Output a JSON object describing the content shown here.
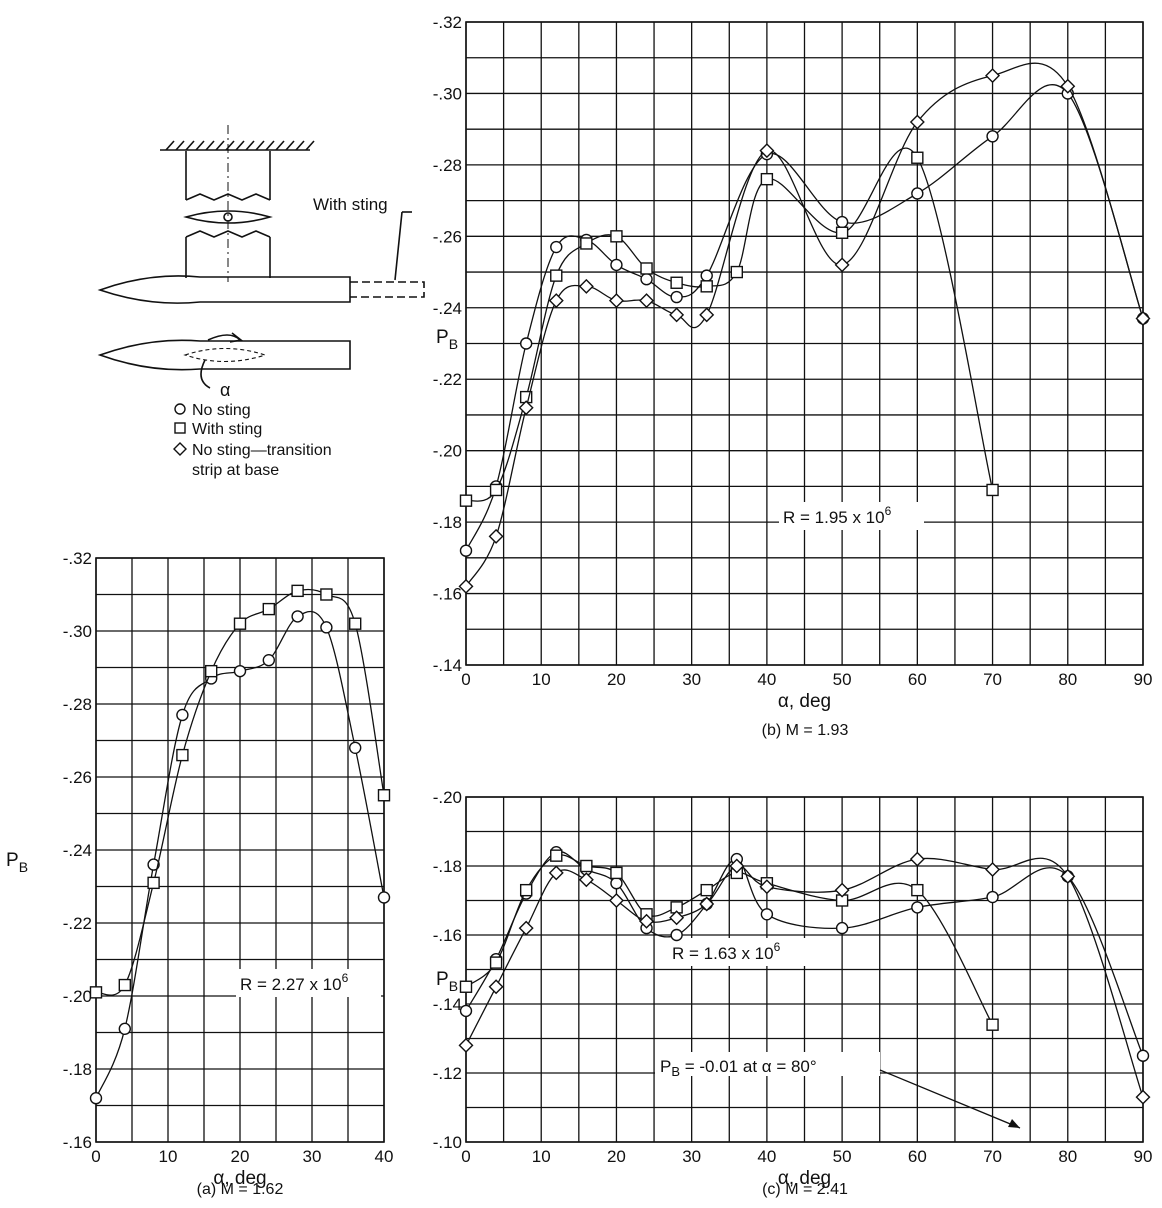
{
  "sketch": {
    "with_sting_label": "With sting",
    "alpha_symbol": "α"
  },
  "legend": [
    {
      "marker": "circle",
      "lines": [
        "No sting"
      ]
    },
    {
      "marker": "square",
      "lines": [
        "With sting"
      ]
    },
    {
      "marker": "diamond",
      "lines": [
        "No sting—transition",
        "strip at base"
      ]
    }
  ],
  "annotation_c": {
    "prefix": "P",
    "sub": "B",
    "suffix": " = -0.01 at α = 80°"
  },
  "chart_data": [
    {
      "id": "a",
      "type": "line",
      "caption": "(a) M = 1.62",
      "xlabel": "α, deg",
      "ylabel": "P",
      "ylabel_sub": "B",
      "xlim": [
        0,
        40
      ],
      "ylim": [
        -0.16,
        -0.32
      ],
      "x_ticks": [
        0,
        10,
        20,
        30,
        40
      ],
      "x_tick_labels": [
        "0",
        "10",
        "20",
        "30",
        "40"
      ],
      "y_ticks": [
        -0.16,
        -0.18,
        -0.2,
        -0.22,
        -0.24,
        -0.26,
        -0.28,
        -0.3,
        -0.32
      ],
      "y_tick_labels": [
        "-.16",
        "-.18",
        "-.20",
        "-.22",
        "-.24",
        "-.26",
        "-.28",
        "-.30",
        "-.32"
      ],
      "reynolds": {
        "text": "R = 2.27 x 10",
        "exp": "6"
      },
      "grid": true,
      "series": [
        {
          "marker": "circle",
          "x": [
            0,
            4,
            8,
            12,
            16,
            20,
            24,
            28,
            32,
            36,
            40
          ],
          "y": [
            -0.172,
            -0.191,
            -0.236,
            -0.277,
            -0.287,
            -0.289,
            -0.292,
            -0.304,
            -0.301,
            -0.268,
            -0.227
          ]
        },
        {
          "marker": "square",
          "x": [
            0,
            4,
            8,
            12,
            16,
            20,
            24,
            28,
            32,
            36,
            40
          ],
          "y": [
            -0.201,
            -0.203,
            -0.231,
            -0.266,
            -0.289,
            -0.302,
            -0.306,
            -0.311,
            -0.31,
            -0.302,
            -0.255
          ]
        }
      ]
    },
    {
      "id": "b",
      "type": "line",
      "caption": "(b) M = 1.93",
      "xlabel": "α, deg",
      "ylabel": "P",
      "ylabel_sub": "B",
      "xlim": [
        0,
        90
      ],
      "ylim": [
        -0.14,
        -0.32
      ],
      "x_ticks": [
        0,
        10,
        20,
        30,
        40,
        50,
        60,
        70,
        80,
        90
      ],
      "x_tick_labels": [
        "0",
        "10",
        "20",
        "30",
        "40",
        "50",
        "60",
        "70",
        "80",
        "90"
      ],
      "y_ticks": [
        -0.14,
        -0.16,
        -0.18,
        -0.2,
        -0.22,
        -0.24,
        -0.26,
        -0.28,
        -0.3,
        -0.32
      ],
      "y_tick_labels": [
        "-.14",
        "-.16",
        "-.18",
        "-.20",
        "-.22",
        "-.24",
        "-.26",
        "-.28",
        "-.30",
        "-.32"
      ],
      "reynolds": {
        "text": "R = 1.95 x 10",
        "exp": "6"
      },
      "grid": true,
      "series": [
        {
          "marker": "circle",
          "x": [
            0,
            4,
            8,
            12,
            16,
            20,
            24,
            28,
            32,
            40,
            50,
            60,
            70,
            80,
            90
          ],
          "y": [
            -0.172,
            -0.19,
            -0.23,
            -0.257,
            -0.259,
            -0.252,
            -0.248,
            -0.243,
            -0.249,
            -0.283,
            -0.264,
            -0.272,
            -0.288,
            -0.3,
            -0.237
          ]
        },
        {
          "marker": "square",
          "x": [
            0,
            4,
            8,
            12,
            16,
            20,
            24,
            28,
            32,
            36,
            40,
            50,
            60,
            70
          ],
          "y": [
            -0.186,
            -0.189,
            -0.215,
            -0.249,
            -0.258,
            -0.26,
            -0.251,
            -0.247,
            -0.246,
            -0.25,
            -0.276,
            -0.261,
            -0.282,
            -0.189
          ]
        },
        {
          "marker": "diamond",
          "x": [
            0,
            4,
            8,
            12,
            16,
            20,
            24,
            28,
            32,
            40,
            50,
            60,
            70,
            80,
            90
          ],
          "y": [
            -0.162,
            -0.176,
            -0.212,
            -0.242,
            -0.246,
            -0.242,
            -0.242,
            -0.238,
            -0.238,
            -0.284,
            -0.252,
            -0.292,
            -0.305,
            -0.302,
            -0.237
          ]
        }
      ]
    },
    {
      "id": "c",
      "type": "line",
      "caption": "(c) M = 2.41",
      "xlabel": "α, deg",
      "ylabel": "P",
      "ylabel_sub": "B",
      "xlim": [
        0,
        90
      ],
      "ylim": [
        -0.1,
        -0.2
      ],
      "x_ticks": [
        0,
        10,
        20,
        30,
        40,
        50,
        60,
        70,
        80,
        90
      ],
      "x_tick_labels": [
        "0",
        "10",
        "20",
        "30",
        "40",
        "50",
        "60",
        "70",
        "80",
        "90"
      ],
      "y_ticks": [
        -0.1,
        -0.12,
        -0.14,
        -0.16,
        -0.18,
        -0.2
      ],
      "y_tick_labels": [
        "-.10",
        "-.12",
        "-.14",
        "-.16",
        "-.18",
        "-.20"
      ],
      "reynolds": {
        "text": "R = 1.63 x 10",
        "exp": "6"
      },
      "grid": true,
      "series": [
        {
          "marker": "circle",
          "x": [
            0,
            4,
            8,
            12,
            16,
            20,
            24,
            28,
            32,
            36,
            40,
            50,
            60,
            70,
            80,
            90
          ],
          "y": [
            -0.138,
            -0.153,
            -0.172,
            -0.184,
            -0.179,
            -0.175,
            -0.162,
            -0.16,
            -0.169,
            -0.182,
            -0.166,
            -0.162,
            -0.168,
            -0.171,
            -0.177,
            -0.125
          ]
        },
        {
          "marker": "square",
          "x": [
            0,
            4,
            8,
            12,
            16,
            20,
            24,
            28,
            32,
            36,
            40,
            50,
            60,
            70
          ],
          "y": [
            -0.145,
            -0.152,
            -0.173,
            -0.183,
            -0.18,
            -0.178,
            -0.166,
            -0.168,
            -0.173,
            -0.178,
            -0.175,
            -0.17,
            -0.173,
            -0.134
          ]
        },
        {
          "marker": "diamond",
          "x": [
            0,
            4,
            8,
            12,
            16,
            20,
            24,
            28,
            32,
            36,
            40,
            50,
            60,
            70,
            80,
            90
          ],
          "y": [
            -0.128,
            -0.145,
            -0.162,
            -0.178,
            -0.176,
            -0.17,
            -0.164,
            -0.165,
            -0.169,
            -0.18,
            -0.174,
            -0.173,
            -0.182,
            -0.179,
            -0.177,
            -0.113
          ]
        }
      ]
    }
  ]
}
